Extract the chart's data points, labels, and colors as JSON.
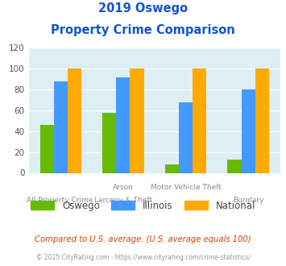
{
  "title_line1": "2019 Oswego",
  "title_line2": "Property Crime Comparison",
  "top_labels": [
    "",
    "Arson",
    "Motor Vehicle Theft",
    ""
  ],
  "bottom_labels": [
    "All Property Crime",
    "Larceny & Theft",
    "",
    "Burglary"
  ],
  "oswego": [
    46,
    58,
    8,
    13
  ],
  "illinois": [
    88,
    92,
    68,
    80
  ],
  "national": [
    100,
    100,
    100,
    100
  ],
  "oswego_color": "#66bb00",
  "illinois_color": "#4499ff",
  "national_color": "#ffaa00",
  "bg_color": "#ddeef5",
  "ylim": [
    0,
    120
  ],
  "yticks": [
    0,
    20,
    40,
    60,
    80,
    100,
    120
  ],
  "footnote1": "Compared to U.S. average. (U.S. average equals 100)",
  "footnote2": "© 2025 CityRating.com - https://www.cityrating.com/crime-statistics/",
  "title_color": "#1155cc",
  "footnote1_color": "#cc4400",
  "footnote2_color": "#8899aa"
}
